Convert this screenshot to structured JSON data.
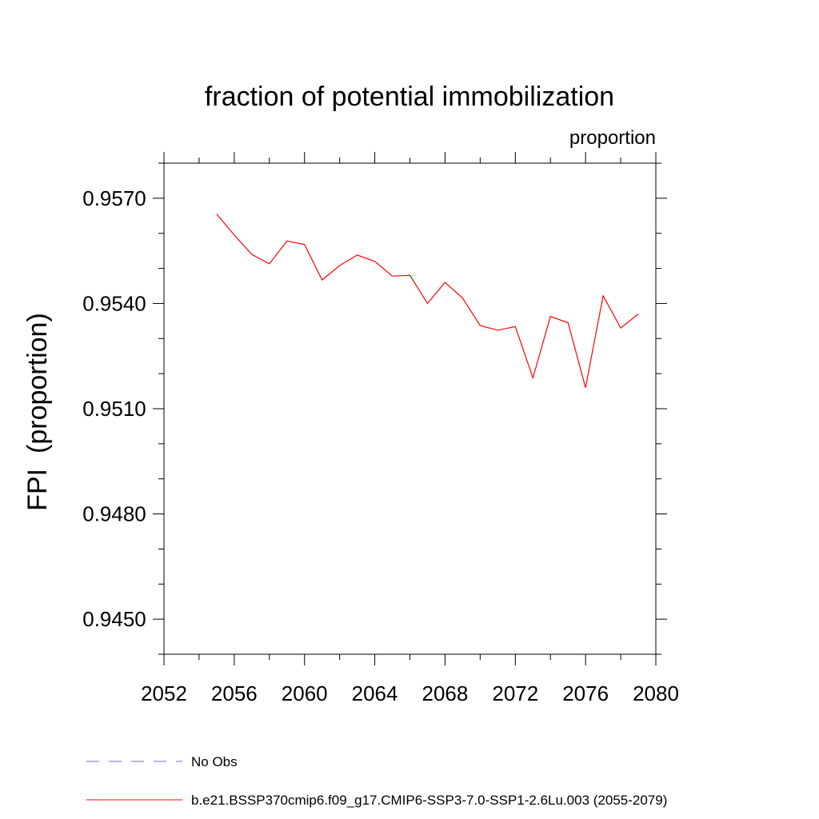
{
  "chart_data": {
    "type": "line",
    "title": "fraction of potential immobilization",
    "subtitle": "proportion",
    "ylabel": "FPI  (proportion)",
    "xlabel": "",
    "xlim": [
      2052,
      2080
    ],
    "ylim": [
      0.944,
      0.958
    ],
    "x_ticks": [
      "2052",
      "2056",
      "2060",
      "2064",
      "2068",
      "2072",
      "2076",
      "2080"
    ],
    "y_ticks": [
      "0.9450",
      "0.9480",
      "0.9510",
      "0.9540",
      "0.9570"
    ],
    "grid": false,
    "legend_position": "bottom",
    "series": [
      {
        "name": "b.e21.BSSP370cmip6.f09_g17.CMIP6-SSP3-7.0-SSP1-2.6Lu.003 (2055-2079)",
        "color": "#ff0000",
        "style": "solid",
        "x": [
          2055,
          2056,
          2057,
          2058,
          2059,
          2060,
          2061,
          2062,
          2063,
          2064,
          2065,
          2066,
          2067,
          2068,
          2069,
          2070,
          2071,
          2072,
          2073,
          2074,
          2075,
          2076,
          2077,
          2078,
          2079
        ],
        "values": [
          0.95655,
          0.95595,
          0.9554,
          0.95513,
          0.95578,
          0.95568,
          0.95467,
          0.95508,
          0.95538,
          0.9552,
          0.95478,
          0.9548,
          0.954,
          0.9546,
          0.95415,
          0.95337,
          0.95324,
          0.95334,
          0.95188,
          0.95363,
          0.95345,
          0.9516,
          0.95422,
          0.9533,
          0.9537
        ]
      }
    ],
    "legend": [
      {
        "label": "No Obs",
        "color": "#7a6fb0",
        "style": "dashed"
      },
      {
        "label": "b.e21.BSSP370cmip6.f09_g17.CMIP6-SSP3-7.0-SSP1-2.6Lu.003 (2055-2079)",
        "color": "#ff0000",
        "style": "solid"
      }
    ]
  }
}
